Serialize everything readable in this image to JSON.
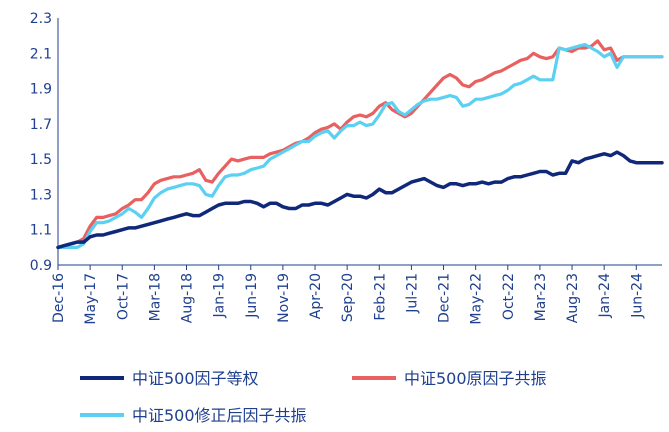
{
  "chart_data": {
    "type": "line",
    "title": "",
    "xlabel": "",
    "ylabel": "",
    "ylim": [
      0.9,
      2.3
    ],
    "yticks": [
      "0.9",
      "1.1",
      "1.3",
      "1.5",
      "1.7",
      "1.9",
      "2.1",
      "2.3"
    ],
    "xticks": [
      "Dec-16",
      "May-17",
      "Oct-17",
      "Mar-18",
      "Aug-18",
      "Jan-19",
      "Jun-19",
      "Nov-19",
      "Apr-20",
      "Sep-20",
      "Feb-21",
      "Jul-21",
      "Dec-21",
      "May-22",
      "Oct-22",
      "Mar-23",
      "Aug-23",
      "Jan-24",
      "Jun-24"
    ],
    "x": [
      "Dec-16",
      "Jan-17",
      "Feb-17",
      "Mar-17",
      "Apr-17",
      "May-17",
      "Jun-17",
      "Jul-17",
      "Aug-17",
      "Sep-17",
      "Oct-17",
      "Nov-17",
      "Dec-17",
      "Jan-18",
      "Feb-18",
      "Mar-18",
      "Apr-18",
      "May-18",
      "Jun-18",
      "Jul-18",
      "Aug-18",
      "Sep-18",
      "Oct-18",
      "Nov-18",
      "Dec-18",
      "Jan-19",
      "Feb-19",
      "Mar-19",
      "Apr-19",
      "May-19",
      "Jun-19",
      "Jul-19",
      "Aug-19",
      "Sep-19",
      "Oct-19",
      "Nov-19",
      "Dec-19",
      "Jan-20",
      "Feb-20",
      "Mar-20",
      "Apr-20",
      "May-20",
      "Jun-20",
      "Jul-20",
      "Aug-20",
      "Sep-20",
      "Oct-20",
      "Nov-20",
      "Dec-20",
      "Jan-21",
      "Feb-21",
      "Mar-21",
      "Apr-21",
      "May-21",
      "Jun-21",
      "Jul-21",
      "Aug-21",
      "Sep-21",
      "Oct-21",
      "Nov-21",
      "Dec-21",
      "Jan-22",
      "Feb-22",
      "Mar-22",
      "Apr-22",
      "May-22",
      "Jun-22",
      "Jul-22",
      "Aug-22",
      "Sep-22",
      "Oct-22",
      "Nov-22",
      "Dec-22",
      "Jan-23",
      "Feb-23",
      "Mar-23",
      "Apr-23",
      "May-23",
      "Jun-23",
      "Jul-23",
      "Aug-23",
      "Sep-23",
      "Oct-23",
      "Nov-23",
      "Dec-23",
      "Jan-24",
      "Feb-24",
      "Mar-24",
      "Apr-24",
      "May-24",
      "Jun-24",
      "Jul-24",
      "Aug-24",
      "Sep-24",
      "Oct-24"
    ],
    "series": [
      {
        "name": "中证500因子等权",
        "color": "#10287a",
        "values": [
          1.0,
          1.01,
          1.02,
          1.03,
          1.03,
          1.06,
          1.07,
          1.07,
          1.08,
          1.09,
          1.1,
          1.11,
          1.11,
          1.12,
          1.13,
          1.14,
          1.15,
          1.16,
          1.17,
          1.18,
          1.19,
          1.18,
          1.18,
          1.2,
          1.22,
          1.24,
          1.25,
          1.25,
          1.25,
          1.26,
          1.26,
          1.25,
          1.23,
          1.25,
          1.25,
          1.23,
          1.22,
          1.22,
          1.24,
          1.24,
          1.25,
          1.25,
          1.24,
          1.26,
          1.28,
          1.3,
          1.29,
          1.29,
          1.28,
          1.3,
          1.33,
          1.31,
          1.31,
          1.33,
          1.35,
          1.37,
          1.38,
          1.39,
          1.37,
          1.35,
          1.34,
          1.36,
          1.36,
          1.35,
          1.36,
          1.36,
          1.37,
          1.36,
          1.37,
          1.37,
          1.39,
          1.4,
          1.4,
          1.41,
          1.42,
          1.43,
          1.43,
          1.41,
          1.42,
          1.42,
          1.49,
          1.48,
          1.5,
          1.51,
          1.52,
          1.53,
          1.52,
          1.54,
          1.52,
          1.49,
          1.48,
          1.48,
          1.48,
          1.48,
          1.48
        ]
      },
      {
        "name": "中证500原因子共振",
        "color": "#e86060",
        "values": [
          1.0,
          1.01,
          1.02,
          1.03,
          1.05,
          1.12,
          1.17,
          1.17,
          1.18,
          1.19,
          1.22,
          1.24,
          1.27,
          1.27,
          1.31,
          1.36,
          1.38,
          1.39,
          1.4,
          1.4,
          1.41,
          1.42,
          1.44,
          1.38,
          1.37,
          1.42,
          1.46,
          1.5,
          1.49,
          1.5,
          1.51,
          1.51,
          1.51,
          1.53,
          1.54,
          1.55,
          1.57,
          1.59,
          1.6,
          1.62,
          1.65,
          1.67,
          1.68,
          1.7,
          1.67,
          1.71,
          1.74,
          1.75,
          1.74,
          1.76,
          1.8,
          1.82,
          1.78,
          1.76,
          1.74,
          1.76,
          1.8,
          1.84,
          1.88,
          1.92,
          1.96,
          1.98,
          1.96,
          1.92,
          1.91,
          1.94,
          1.95,
          1.97,
          1.99,
          2.0,
          2.02,
          2.04,
          2.06,
          2.07,
          2.1,
          2.08,
          2.07,
          2.08,
          2.13,
          2.12,
          2.11,
          2.13,
          2.13,
          2.14,
          2.17,
          2.12,
          2.13,
          2.06,
          2.08,
          2.08,
          2.08,
          2.08,
          2.08,
          2.08,
          2.08
        ]
      },
      {
        "name": "中证500修正后因子共振",
        "color": "#5bd0f2",
        "values": [
          1.0,
          1.0,
          1.0,
          1.0,
          1.02,
          1.09,
          1.14,
          1.14,
          1.15,
          1.17,
          1.19,
          1.22,
          1.2,
          1.17,
          1.22,
          1.28,
          1.31,
          1.33,
          1.34,
          1.35,
          1.36,
          1.36,
          1.35,
          1.3,
          1.29,
          1.35,
          1.4,
          1.41,
          1.41,
          1.42,
          1.44,
          1.45,
          1.46,
          1.5,
          1.52,
          1.54,
          1.56,
          1.58,
          1.6,
          1.6,
          1.63,
          1.65,
          1.66,
          1.62,
          1.66,
          1.69,
          1.69,
          1.71,
          1.69,
          1.7,
          1.75,
          1.81,
          1.82,
          1.77,
          1.75,
          1.78,
          1.81,
          1.83,
          1.84,
          1.84,
          1.85,
          1.86,
          1.85,
          1.8,
          1.81,
          1.84,
          1.84,
          1.85,
          1.86,
          1.87,
          1.89,
          1.92,
          1.93,
          1.95,
          1.97,
          1.95,
          1.95,
          1.95,
          2.13,
          2.12,
          2.13,
          2.14,
          2.15,
          2.13,
          2.11,
          2.08,
          2.1,
          2.02,
          2.08,
          2.08,
          2.08,
          2.08,
          2.08,
          2.08,
          2.08
        ]
      }
    ],
    "legend_position": "bottom",
    "grid": false
  }
}
